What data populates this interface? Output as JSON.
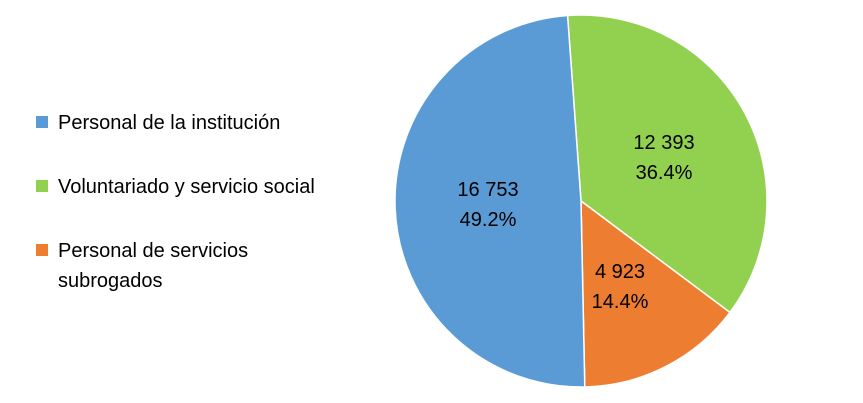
{
  "chart_data": {
    "type": "pie",
    "title": "",
    "slices": [
      {
        "label": "Personal de la institución",
        "value": 16753,
        "value_text": "16 753",
        "percent_text": "49.2%",
        "color": "#5b9bd5"
      },
      {
        "label": "Voluntariado y servicio social",
        "value": 12393,
        "value_text": "12 393",
        "percent_text": "36.4%",
        "color": "#92d050"
      },
      {
        "label": "Personal de servicios subrogados",
        "value": 4923,
        "value_text": "4 923",
        "percent_text": "14.4%",
        "color": "#ed7d31"
      }
    ],
    "legend_position": "left"
  }
}
